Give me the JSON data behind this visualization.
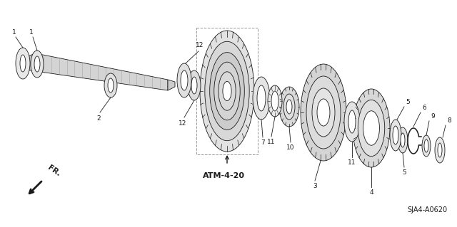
{
  "background_color": "#ffffff",
  "line_color": "#1a1a1a",
  "fig_width": 6.4,
  "fig_height": 3.19,
  "dpi": 100,
  "atm_label": "ATM-4-20",
  "diagram_ref": "SJA4-A0620",
  "fr_label": "FR."
}
